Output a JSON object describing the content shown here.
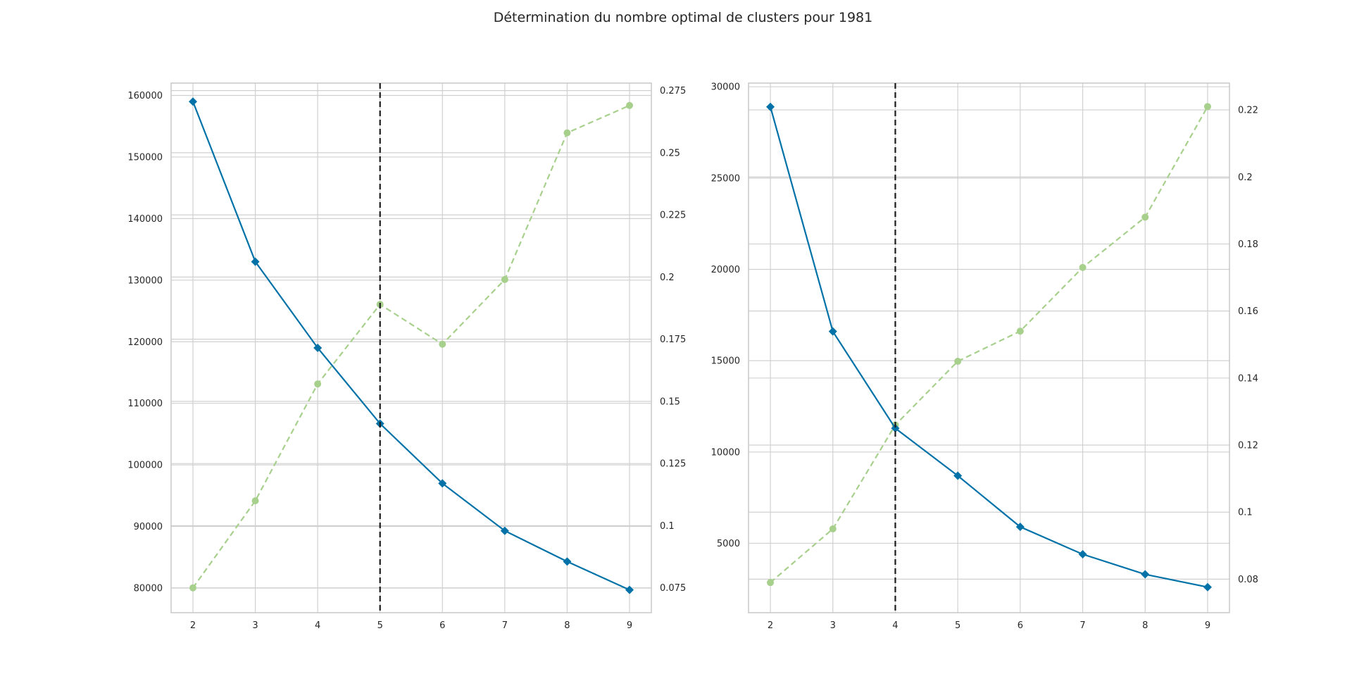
{
  "title": "Détermination du nombre optimal de clusters pour 1981",
  "colors": {
    "distortion": "#0072a8",
    "fit_time": "#a8d08d",
    "elbow_line": "#1a1a1a",
    "grid": "#d0d0d0",
    "spine": "#c8c8c8"
  },
  "chart_data": [
    {
      "type": "line",
      "x": [
        2,
        3,
        4,
        5,
        6,
        7,
        8,
        9
      ],
      "xlim": [
        1.65,
        9.35
      ],
      "ylim": [
        76000,
        162000
      ],
      "y2lim": [
        0.065,
        0.278
      ],
      "yticks": [
        80000,
        90000,
        100000,
        110000,
        120000,
        130000,
        140000,
        150000,
        160000
      ],
      "y2ticks": [
        0.075,
        0.1,
        0.125,
        0.15,
        0.175,
        0.2,
        0.225,
        0.25,
        0.275
      ],
      "elbow_k": 5,
      "series": [
        {
          "axis": "left",
          "marker": "diamond",
          "style": "solid",
          "values": [
            159000,
            133000,
            119000,
            106700,
            97000,
            89300,
            84300,
            79700
          ]
        },
        {
          "axis": "right",
          "marker": "circle",
          "style": "dashed",
          "values": [
            0.075,
            0.11,
            0.157,
            0.189,
            0.173,
            0.199,
            0.258,
            0.269
          ]
        }
      ]
    },
    {
      "type": "line",
      "x": [
        2,
        3,
        4,
        5,
        6,
        7,
        8,
        9
      ],
      "xlim": [
        1.65,
        9.35
      ],
      "ylim": [
        1200,
        30200
      ],
      "y2lim": [
        0.07,
        0.228
      ],
      "yticks": [
        5000,
        10000,
        15000,
        20000,
        25000,
        30000
      ],
      "y2ticks": [
        0.08,
        0.1,
        0.12,
        0.14,
        0.16,
        0.18,
        0.2,
        0.22
      ],
      "elbow_k": 4,
      "series": [
        {
          "axis": "left",
          "marker": "diamond",
          "style": "solid",
          "values": [
            28900,
            16600,
            11300,
            8700,
            5900,
            4400,
            3300,
            2600
          ]
        },
        {
          "axis": "right",
          "marker": "circle",
          "style": "dashed",
          "values": [
            0.079,
            0.095,
            0.126,
            0.145,
            0.154,
            0.173,
            0.188,
            0.221
          ]
        }
      ]
    }
  ]
}
